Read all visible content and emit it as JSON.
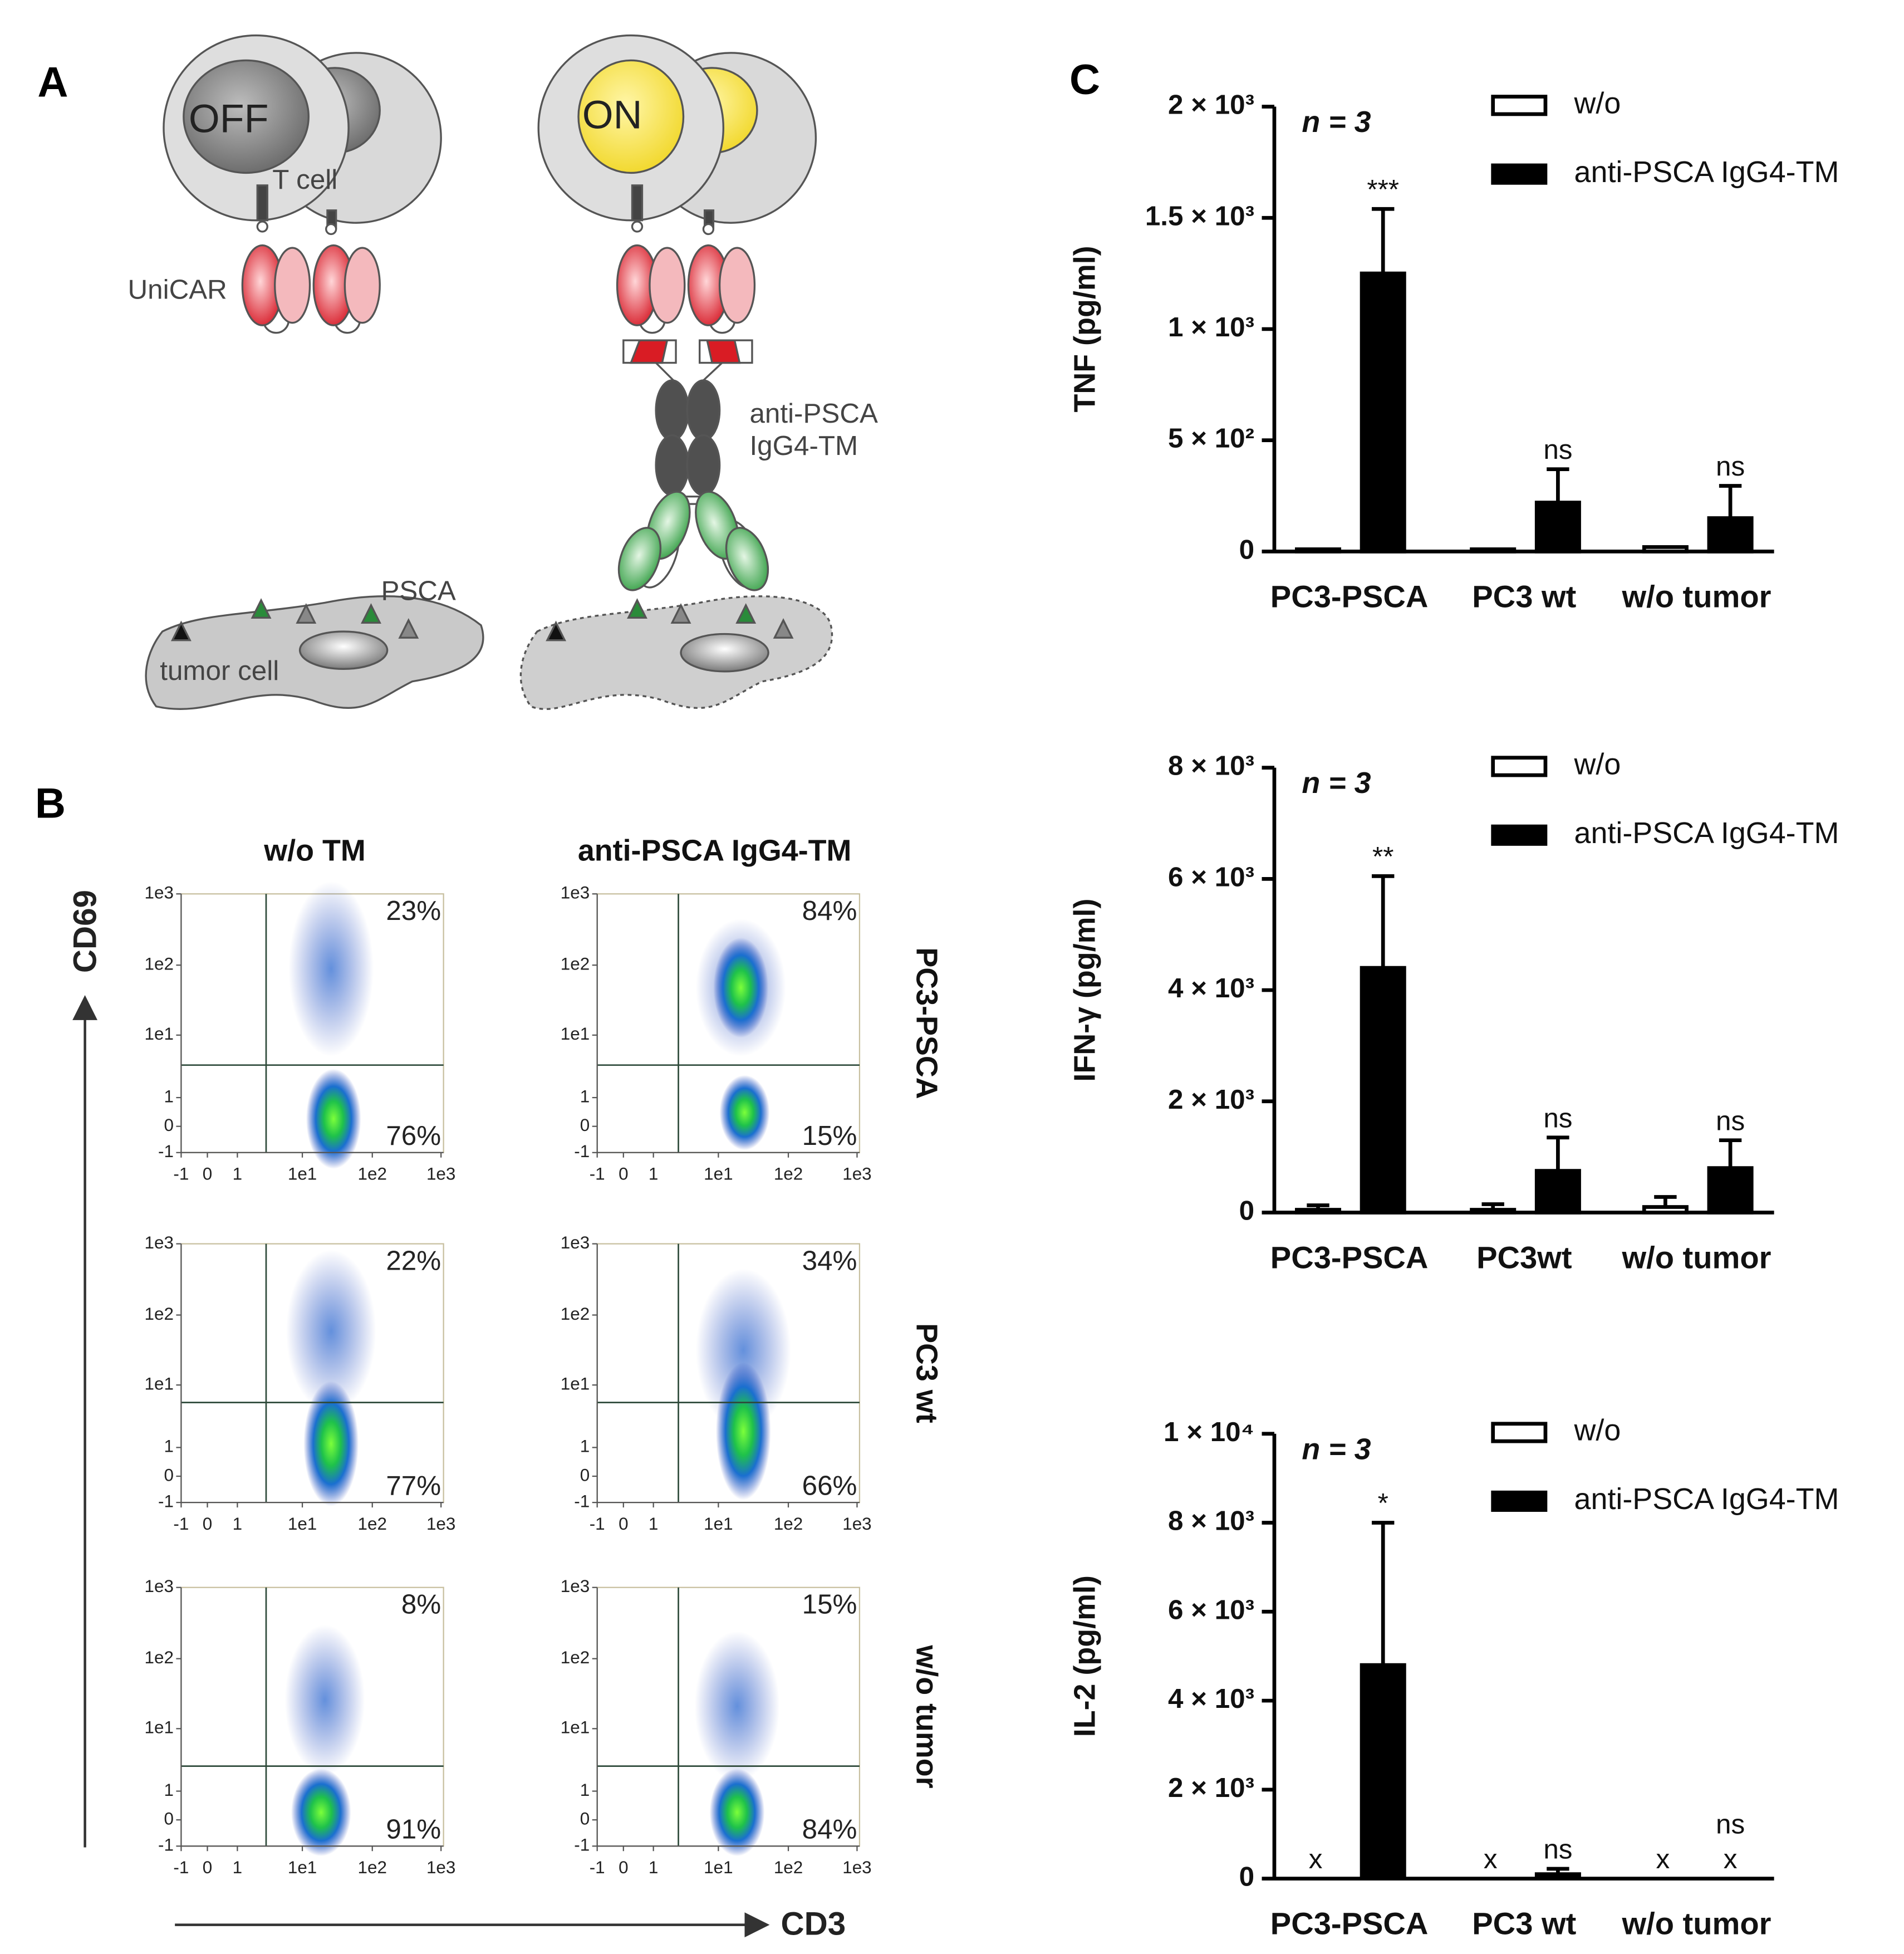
{
  "panel_labels": [
    "A",
    "B",
    "C"
  ],
  "diagram": {
    "off_state": "OFF",
    "on_state": "ON",
    "t_cell": "T cell",
    "receptor": "UniCAR",
    "target_module": [
      "anti-PSCA",
      "IgG4-TM"
    ],
    "antigen": "PSCA",
    "tumor_cell": "tumor cell"
  },
  "flow": {
    "columns": [
      "w/o TM",
      "anti-PSCA IgG4-TM"
    ],
    "rows": [
      "PC3-PSCA",
      "PC3 wt",
      "w/o tumor"
    ],
    "y_label": "CD69",
    "x_label": "CD3",
    "ticks": [
      "-1",
      "0",
      "1",
      "1e1",
      "1e2",
      "1e3"
    ],
    "percentages": [
      [
        [
          "23%",
          "76%"
        ],
        [
          "84%",
          "15%"
        ]
      ],
      [
        [
          "22%",
          "77%"
        ],
        [
          "34%",
          "66%"
        ]
      ],
      [
        [
          "8%",
          "91%"
        ],
        [
          "15%",
          "84%"
        ]
      ]
    ]
  },
  "chart_data": [
    {
      "type": "bar",
      "y_label": "TNF (pg/ml)",
      "annotation": "n = 3",
      "categories": [
        "PC3-PSCA",
        "PC3 wt",
        "w/o tumor"
      ],
      "series": [
        {
          "name": "w/o",
          "color": "#ffffff",
          "values": [
            10,
            10,
            20
          ],
          "errors": [
            null,
            null,
            null
          ]
        },
        {
          "name": "anti-PSCA IgG4-TM",
          "color": "#000000",
          "values": [
            1250,
            220,
            150
          ],
          "errors": [
            290,
            150,
            145
          ]
        }
      ],
      "significance": [
        "***",
        "ns",
        "ns"
      ],
      "ylim": [
        0,
        2000
      ],
      "yticks": [
        0,
        {
          "value": 500,
          "label": "5 × 10²"
        },
        {
          "value": 1000,
          "label": "1 × 10³"
        },
        {
          "value": 1500,
          "label": "1.5 × 10³"
        },
        {
          "value": 2000,
          "label": "2 × 10³"
        }
      ]
    },
    {
      "type": "bar",
      "y_label": "IFN-γ (pg/ml)",
      "annotation": "n = 3",
      "categories": [
        "PC3-PSCA",
        "PC3wt",
        "w/o tumor"
      ],
      "series": [
        {
          "name": "w/o",
          "color": "#ffffff",
          "values": [
            50,
            50,
            100
          ],
          "errors": [
            80,
            100,
            180
          ]
        },
        {
          "name": "anti-PSCA IgG4-TM",
          "color": "#000000",
          "values": [
            4400,
            750,
            800
          ],
          "errors": [
            1650,
            600,
            500
          ]
        }
      ],
      "significance": [
        "**",
        "ns",
        "ns"
      ],
      "ylim": [
        0,
        8000
      ],
      "yticks": [
        0,
        {
          "value": 2000,
          "label": "2 × 10³"
        },
        {
          "value": 4000,
          "label": "4 × 10³"
        },
        {
          "value": 6000,
          "label": "6 × 10³"
        },
        {
          "value": 8000,
          "label": "8 × 10³"
        }
      ]
    },
    {
      "type": "bar",
      "y_label": "IL-2 (pg/ml)",
      "annotation": "n = 3",
      "categories": [
        "PC3-PSCA",
        "PC3 wt",
        "w/o tumor"
      ],
      "series": [
        {
          "name": "w/o",
          "color": "#ffffff",
          "values": [
            null,
            null,
            null
          ],
          "value_labels": [
            "x",
            "x",
            "x"
          ],
          "errors": [
            null,
            null,
            null
          ]
        },
        {
          "name": "anti-PSCA IgG4-TM",
          "color": "#000000",
          "values": [
            4800,
            100,
            null
          ],
          "value_labels": [
            null,
            null,
            "x"
          ],
          "errors": [
            3200,
            120,
            null
          ]
        }
      ],
      "significance": [
        "*",
        "ns",
        "ns"
      ],
      "ylim": [
        0,
        10000
      ],
      "yticks": [
        0,
        {
          "value": 2000,
          "label": "2 × 10³"
        },
        {
          "value": 4000,
          "label": "4 × 10³"
        },
        {
          "value": 6000,
          "label": "6 × 10³"
        },
        {
          "value": 8000,
          "label": "8 × 10³"
        },
        {
          "value": 10000,
          "label": "1 × 10⁴"
        }
      ]
    }
  ]
}
